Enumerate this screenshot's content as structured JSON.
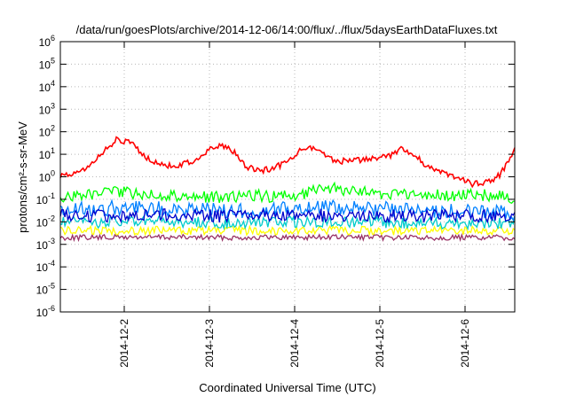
{
  "chart_data": {
    "type": "line",
    "title": "/data/run/goesPlots/archive/2014-12-06/14:00/flux/../flux/5daysEarthDataFluxes.txt",
    "xlabel": "Coordinated Universal Time (UTC)",
    "ylabel": "protons/cm²-s-sr-MeV",
    "yscale": "log",
    "ylim": [
      1e-06,
      1000000.0
    ],
    "xlim": [
      "2014-12-01T06:00",
      "2014-12-06T14:00"
    ],
    "grid": true,
    "legend": "none",
    "y_ticks": [
      {
        "value": 1e-06,
        "base": "10",
        "exp": "-6"
      },
      {
        "value": 1e-05,
        "base": "10",
        "exp": "-5"
      },
      {
        "value": 0.0001,
        "base": "10",
        "exp": "-4"
      },
      {
        "value": 0.001,
        "base": "10",
        "exp": "-3"
      },
      {
        "value": 0.01,
        "base": "10",
        "exp": "-2"
      },
      {
        "value": 0.1,
        "base": "10",
        "exp": "-1"
      },
      {
        "value": 1,
        "base": "10",
        "exp": "0"
      },
      {
        "value": 10,
        "base": "10",
        "exp": "1"
      },
      {
        "value": 100,
        "base": "10",
        "exp": "2"
      },
      {
        "value": 1000,
        "base": "10",
        "exp": "3"
      },
      {
        "value": 10000,
        "base": "10",
        "exp": "4"
      },
      {
        "value": 100000,
        "base": "10",
        "exp": "5"
      },
      {
        "value": 1000000,
        "base": "10",
        "exp": "6"
      }
    ],
    "x_ticks": [
      {
        "value": "2014-12-02T00:00",
        "label": "2014-12-2"
      },
      {
        "value": "2014-12-03T00:00",
        "label": "2014-12-3"
      },
      {
        "value": "2014-12-04T00:00",
        "label": "2014-12-4"
      },
      {
        "value": "2014-12-05T00:00",
        "label": "2014-12-5"
      },
      {
        "value": "2014-12-06T00:00",
        "label": "2014-12-6"
      }
    ],
    "series": [
      {
        "color": "#ff0000",
        "x": [
          "2014-12-01T06:00",
          "2014-12-01T10:00",
          "2014-12-01T14:00",
          "2014-12-01T18:00",
          "2014-12-01T22:00",
          "2014-12-02T02:00",
          "2014-12-02T06:00",
          "2014-12-02T10:00",
          "2014-12-02T14:00",
          "2014-12-02T18:00",
          "2014-12-02T22:00",
          "2014-12-03T02:00",
          "2014-12-03T06:00",
          "2014-12-03T10:00",
          "2014-12-03T14:00",
          "2014-12-03T18:00",
          "2014-12-03T22:00",
          "2014-12-04T02:00",
          "2014-12-04T06:00",
          "2014-12-04T10:00",
          "2014-12-04T14:00",
          "2014-12-04T18:00",
          "2014-12-04T22:00",
          "2014-12-05T02:00",
          "2014-12-05T06:00",
          "2014-12-05T10:00",
          "2014-12-05T14:00",
          "2014-12-05T18:00",
          "2014-12-05T22:00",
          "2014-12-06T02:00",
          "2014-12-06T06:00",
          "2014-12-06T10:00",
          "2014-12-06T14:00"
        ],
        "y": [
          1.2,
          1.6,
          3,
          12,
          45,
          30,
          7,
          3.5,
          3,
          4,
          9,
          25,
          18,
          3,
          1.8,
          2.5,
          4,
          18,
          20,
          6,
          5,
          5.5,
          6,
          8,
          16,
          9,
          2.5,
          1.5,
          0.8,
          0.5,
          0.6,
          1.2,
          18
        ]
      },
      {
        "color": "#00ff00",
        "x": [
          "2014-12-01T06:00",
          "2014-12-01T12:00",
          "2014-12-01T18:00",
          "2014-12-02T00:00",
          "2014-12-02T06:00",
          "2014-12-02T12:00",
          "2014-12-02T18:00",
          "2014-12-03T00:00",
          "2014-12-03T06:00",
          "2014-12-03T12:00",
          "2014-12-03T18:00",
          "2014-12-04T00:00",
          "2014-12-04T06:00",
          "2014-12-04T12:00",
          "2014-12-04T18:00",
          "2014-12-05T00:00",
          "2014-12-05T06:00",
          "2014-12-05T12:00",
          "2014-12-05T18:00",
          "2014-12-06T00:00",
          "2014-12-06T06:00",
          "2014-12-06T12:00",
          "2014-12-06T14:00"
        ],
        "y": [
          0.12,
          0.15,
          0.2,
          0.2,
          0.18,
          0.15,
          0.14,
          0.13,
          0.12,
          0.15,
          0.13,
          0.15,
          0.25,
          0.3,
          0.22,
          0.18,
          0.15,
          0.15,
          0.15,
          0.16,
          0.15,
          0.13,
          0.12
        ]
      },
      {
        "color": "#0080ff",
        "x": [
          "2014-12-01T06:00",
          "2014-12-01T18:00",
          "2014-12-02T06:00",
          "2014-12-02T18:00",
          "2014-12-03T06:00",
          "2014-12-03T18:00",
          "2014-12-04T06:00",
          "2014-12-04T18:00",
          "2014-12-05T06:00",
          "2014-12-05T18:00",
          "2014-12-06T06:00",
          "2014-12-06T14:00"
        ],
        "y": [
          0.03,
          0.04,
          0.04,
          0.035,
          0.03,
          0.035,
          0.045,
          0.04,
          0.035,
          0.03,
          0.03,
          0.025
        ]
      },
      {
        "color": "#0000cc",
        "x": [
          "2014-12-01T06:00",
          "2014-12-02T06:00",
          "2014-12-03T06:00",
          "2014-12-04T06:00",
          "2014-12-05T06:00",
          "2014-12-06T06:00",
          "2014-12-06T14:00"
        ],
        "y": [
          0.018,
          0.02,
          0.018,
          0.02,
          0.018,
          0.018,
          0.016
        ]
      },
      {
        "color": "#00cccc",
        "x": [
          "2014-12-01T06:00",
          "2014-12-02T06:00",
          "2014-12-03T06:00",
          "2014-12-04T06:00",
          "2014-12-05T06:00",
          "2014-12-06T06:00",
          "2014-12-06T14:00"
        ],
        "y": [
          0.009,
          0.01,
          0.009,
          0.01,
          0.009,
          0.009,
          0.009
        ]
      },
      {
        "color": "#ffff00",
        "x": [
          "2014-12-01T06:00",
          "2014-12-02T06:00",
          "2014-12-03T06:00",
          "2014-12-04T06:00",
          "2014-12-05T06:00",
          "2014-12-06T06:00",
          "2014-12-06T14:00"
        ],
        "y": [
          0.004,
          0.0042,
          0.004,
          0.0042,
          0.004,
          0.004,
          0.004
        ]
      },
      {
        "color": "#993366",
        "x": [
          "2014-12-01T06:00",
          "2014-12-02T06:00",
          "2014-12-03T06:00",
          "2014-12-04T06:00",
          "2014-12-05T06:00",
          "2014-12-06T06:00",
          "2014-12-06T14:00"
        ],
        "y": [
          0.002,
          0.0021,
          0.002,
          0.0021,
          0.002,
          0.002,
          0.002
        ]
      }
    ]
  }
}
